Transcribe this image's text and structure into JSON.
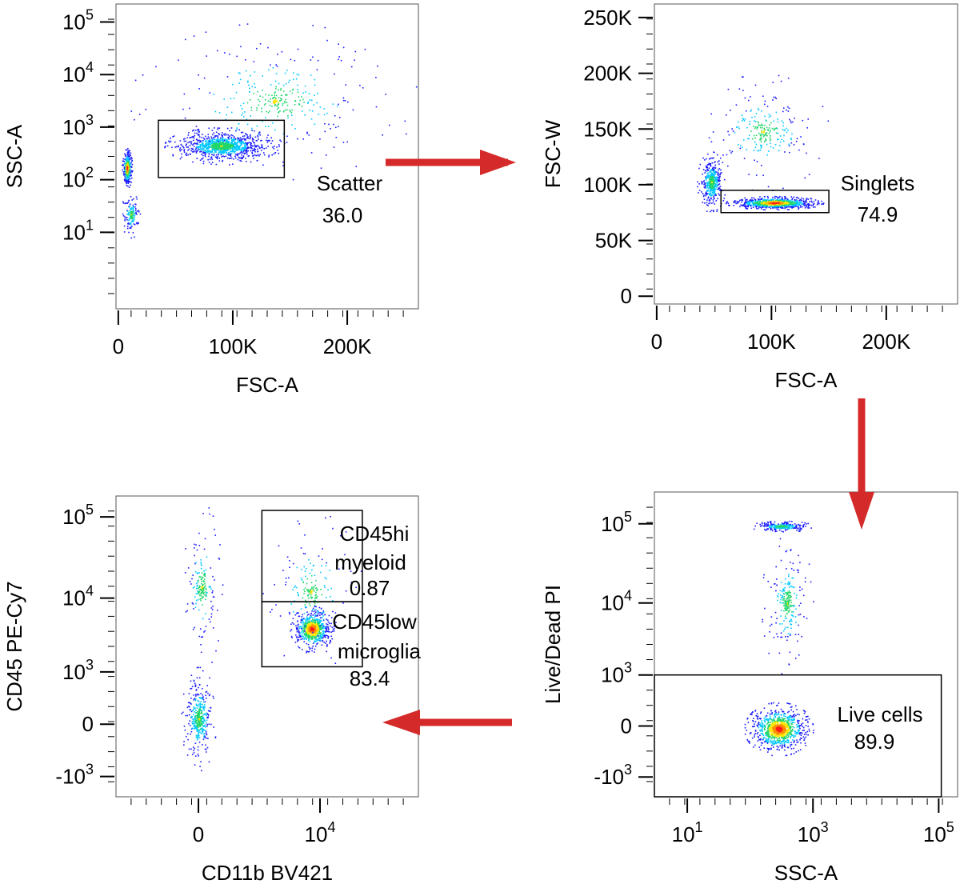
{
  "figure": {
    "kind": "flow-cytometry gating strategy"
  },
  "arrows": [
    {
      "from": "scatter-plot",
      "to": "singlets-plot",
      "direction": "right"
    },
    {
      "from": "singlets-plot",
      "to": "live-plot",
      "direction": "down"
    },
    {
      "from": "live-plot",
      "to": "microglia-plot",
      "direction": "left"
    }
  ],
  "chart_data": [
    {
      "id": "scatter-plot",
      "type": "scatter",
      "title": "",
      "xlabel": "FSC-A",
      "ylabel": "SSC-A",
      "x_scale": "linear",
      "y_scale": "log",
      "xlim": [
        -2000,
        262144
      ],
      "ylim": [
        0.35,
        220000
      ],
      "x_ticks": [
        {
          "v": 0,
          "label": "0"
        },
        {
          "v": 100000,
          "label": "100K"
        },
        {
          "v": 200000,
          "label": "200K"
        }
      ],
      "y_ticks": [
        {
          "v": 10,
          "base": "10",
          "exp": "1"
        },
        {
          "v": 100,
          "base": "10",
          "exp": "2"
        },
        {
          "v": 1000,
          "base": "10",
          "exp": "3"
        },
        {
          "v": 10000,
          "base": "10",
          "exp": "4"
        },
        {
          "v": 100000,
          "base": "10",
          "exp": "5"
        }
      ],
      "gates": [
        {
          "name": "Scatter",
          "value": "36.0",
          "x": [
            35000,
            145000
          ],
          "y": [
            110,
            1350
          ]
        }
      ],
      "clusters": [
        {
          "x": [
            3000,
            12000
          ],
          "y": [
            70,
            400
          ],
          "n": 500
        },
        {
          "x": [
            40000,
            140000
          ],
          "y": [
            200,
            1000
          ],
          "n": 1300
        },
        {
          "x": [
            10000,
            262144
          ],
          "y": [
            100,
            100000
          ],
          "n": 350
        },
        {
          "x": [
            2000,
            20000
          ],
          "y": [
            8,
            60
          ],
          "n": 150
        }
      ]
    },
    {
      "id": "singlets-plot",
      "type": "scatter",
      "title": "",
      "xlabel": "FSC-A",
      "ylabel": "FSC-W",
      "x_scale": "linear",
      "y_scale": "linear",
      "xlim": [
        -2000,
        262144
      ],
      "ylim": [
        -7000,
        262144
      ],
      "x_ticks": [
        {
          "v": 0,
          "label": "0"
        },
        {
          "v": 100000,
          "label": "100K"
        },
        {
          "v": 200000,
          "label": "200K"
        }
      ],
      "y_ticks": [
        {
          "v": 0,
          "label": "0"
        },
        {
          "v": 50000,
          "label": "50K"
        },
        {
          "v": 100000,
          "label": "100K"
        },
        {
          "v": 150000,
          "label": "150K"
        },
        {
          "v": 200000,
          "label": "200K"
        },
        {
          "v": 250000,
          "label": "250K"
        }
      ],
      "gates": [
        {
          "name": "Singlets",
          "value": "74.9",
          "x": [
            56000,
            150000
          ],
          "y": [
            75000,
            95000
          ]
        }
      ],
      "clusters": [
        {
          "x": [
            60000,
            145000
          ],
          "y": [
            78000,
            90000
          ],
          "n": 1200
        },
        {
          "x": [
            35000,
            60000
          ],
          "y": [
            75000,
            130000
          ],
          "n": 500
        },
        {
          "x": [
            35000,
            150000
          ],
          "y": [
            95000,
            200000
          ],
          "n": 250
        }
      ]
    },
    {
      "id": "live-plot",
      "type": "scatter",
      "title": "",
      "xlabel": "SSC-A",
      "ylabel": "Live/Dead PI",
      "x_scale": "log",
      "y_scale": "biexponential",
      "xlim": [
        3,
        200000
      ],
      "ylim": [
        -2000,
        250000
      ],
      "x_ticks": [
        {
          "v": 10,
          "base": "10",
          "exp": "1"
        },
        {
          "v": 1000,
          "base": "10",
          "exp": "3"
        },
        {
          "v": 100000,
          "base": "10",
          "exp": "5"
        }
      ],
      "y_ticks": [
        {
          "v": -1000,
          "base": "-10",
          "exp": "3"
        },
        {
          "v": 0,
          "label": "0"
        },
        {
          "v": 1000,
          "base": "10",
          "exp": "3"
        },
        {
          "v": 10000,
          "base": "10",
          "exp": "4"
        },
        {
          "v": 100000,
          "base": "10",
          "exp": "5"
        }
      ],
      "gates": [
        {
          "name": "Live cells",
          "value": "89.9",
          "x": [
            3,
            110000
          ],
          "y": [
            -2000,
            1000
          ]
        }
      ],
      "clusters": [
        {
          "x": [
            80,
            1000
          ],
          "y": [
            -400,
            300
          ],
          "n": 1200
        },
        {
          "x": [
            100,
            1000
          ],
          "y": [
            80000,
            110000
          ],
          "n": 350
        },
        {
          "x": [
            150,
            1000
          ],
          "y": [
            1000,
            80000
          ],
          "n": 250
        }
      ]
    },
    {
      "id": "microglia-plot",
      "type": "scatter",
      "title": "",
      "xlabel": "CD11b BV421",
      "ylabel": "CD45 PE-Cy7",
      "x_scale": "biexponential",
      "y_scale": "biexponential",
      "xlim": [
        -3000,
        180000
      ],
      "ylim": [
        -2000,
        180000
      ],
      "x_ticks": [
        {
          "v": 0,
          "label": "0"
        },
        {
          "v": 10000,
          "base": "10",
          "exp": "4"
        }
      ],
      "y_ticks": [
        {
          "v": -1000,
          "base": "-10",
          "exp": "3"
        },
        {
          "v": 0,
          "label": "0"
        },
        {
          "v": 1000,
          "base": "10",
          "exp": "3"
        },
        {
          "v": 10000,
          "base": "10",
          "exp": "4"
        },
        {
          "v": 100000,
          "base": "10",
          "exp": "5"
        }
      ],
      "gates": [
        {
          "name": "CD45hi",
          "name2": "myeloid",
          "value": "0.87",
          "x": [
            1600,
            35000
          ],
          "y": [
            9000,
            120000
          ]
        },
        {
          "name": "CD45low",
          "name2": "microglia",
          "value": "83.4",
          "x": [
            1600,
            35000
          ],
          "y": [
            1200,
            9000
          ]
        }
      ],
      "clusters": [
        {
          "x": [
            4000,
            15000
          ],
          "y": [
            2000,
            8000
          ],
          "n": 900
        },
        {
          "x": [
            -200,
            200
          ],
          "y": [
            -800,
            1200
          ],
          "n": 450
        },
        {
          "x": [
            -200,
            300
          ],
          "y": [
            1000,
            150000
          ],
          "n": 200
        },
        {
          "x": [
            1500,
            35000
          ],
          "y": [
            1000,
            120000
          ],
          "n": 200
        }
      ]
    }
  ]
}
